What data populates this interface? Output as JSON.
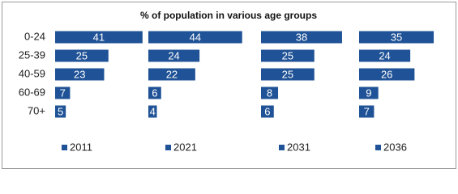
{
  "chart_data": {
    "type": "bar",
    "orientation": "horizontal",
    "title": "% of population in various age groups",
    "categories": [
      "0-24",
      "25-39",
      "40-59",
      "60-69",
      "70+"
    ],
    "series": [
      {
        "name": "2011",
        "color": "#1f5296",
        "values": [
          41,
          25,
          23,
          7,
          5
        ]
      },
      {
        "name": "2021",
        "color": "#1f5296",
        "values": [
          44,
          24,
          22,
          6,
          4
        ]
      },
      {
        "name": "2031",
        "color": "#1f5296",
        "values": [
          38,
          25,
          25,
          8,
          6
        ]
      },
      {
        "name": "2036",
        "color": "#1f5296",
        "values": [
          35,
          24,
          26,
          9,
          7
        ]
      }
    ]
  }
}
